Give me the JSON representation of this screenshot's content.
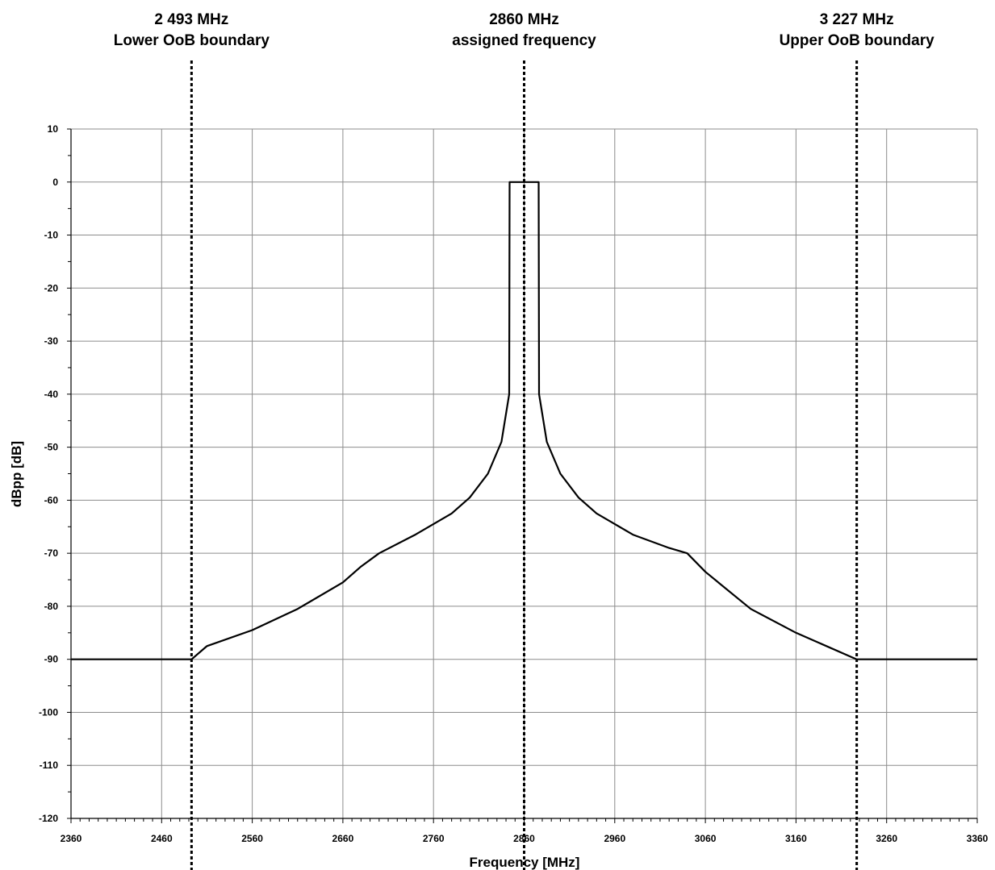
{
  "chart_data": {
    "type": "line",
    "title": "",
    "xlabel": "Frequency [MHz]",
    "ylabel": "dBpp [dB]",
    "xlim": [
      2360,
      3360
    ],
    "ylim": [
      -120,
      10
    ],
    "x_ticks": [
      2360,
      2460,
      2560,
      2660,
      2760,
      2860,
      2960,
      3060,
      3160,
      3260,
      3360
    ],
    "x_tick_labels": [
      "2360",
      "2460",
      "2560",
      "2660",
      "2760",
      "2860",
      "2960",
      "3060",
      "3160",
      "3260",
      "3360"
    ],
    "y_ticks": [
      10,
      0,
      -10,
      -20,
      -30,
      -40,
      -50,
      -60,
      -70,
      -80,
      -90,
      -100,
      -110,
      -120
    ],
    "y_tick_labels": [
      "10",
      "0",
      "-10",
      "-20",
      "-30",
      "-40",
      "-50",
      "-60",
      "-70",
      "-80",
      "-90",
      "-100",
      "-110",
      "-120"
    ],
    "grid": true,
    "series": [
      {
        "name": "",
        "color": "#000000",
        "x": [
          2360,
          2493,
          2510,
          2560,
          2610,
          2660,
          2680,
          2700,
          2740,
          2780,
          2800,
          2820,
          2835,
          2843.5,
          2844,
          2876,
          2876.5,
          2885,
          2900,
          2920,
          2940,
          2980,
          3020,
          3040,
          3060,
          3110,
          3160,
          3227,
          3360
        ],
        "y": [
          -90,
          -90,
          -87.5,
          -84.5,
          -80.5,
          -75.5,
          -72.5,
          -70,
          -66.5,
          -62.5,
          -59.5,
          -55,
          -49,
          -40,
          0,
          0,
          -40,
          -49,
          -55,
          -59.5,
          -62.5,
          -66.5,
          -69,
          -70,
          -73.5,
          -80.5,
          -85,
          -90,
          -90
        ]
      }
    ],
    "annotations": [
      {
        "x": 2493,
        "line_style": "dotted",
        "line1": "2 493 MHz",
        "line2": "Lower OoB boundary"
      },
      {
        "x": 2860,
        "line_style": "dotted",
        "line1": "2860 MHz",
        "line2": "assigned frequency"
      },
      {
        "x": 3227,
        "line_style": "dotted",
        "line1": "3 227 MHz",
        "line2": "Upper OoB boundary"
      }
    ]
  }
}
